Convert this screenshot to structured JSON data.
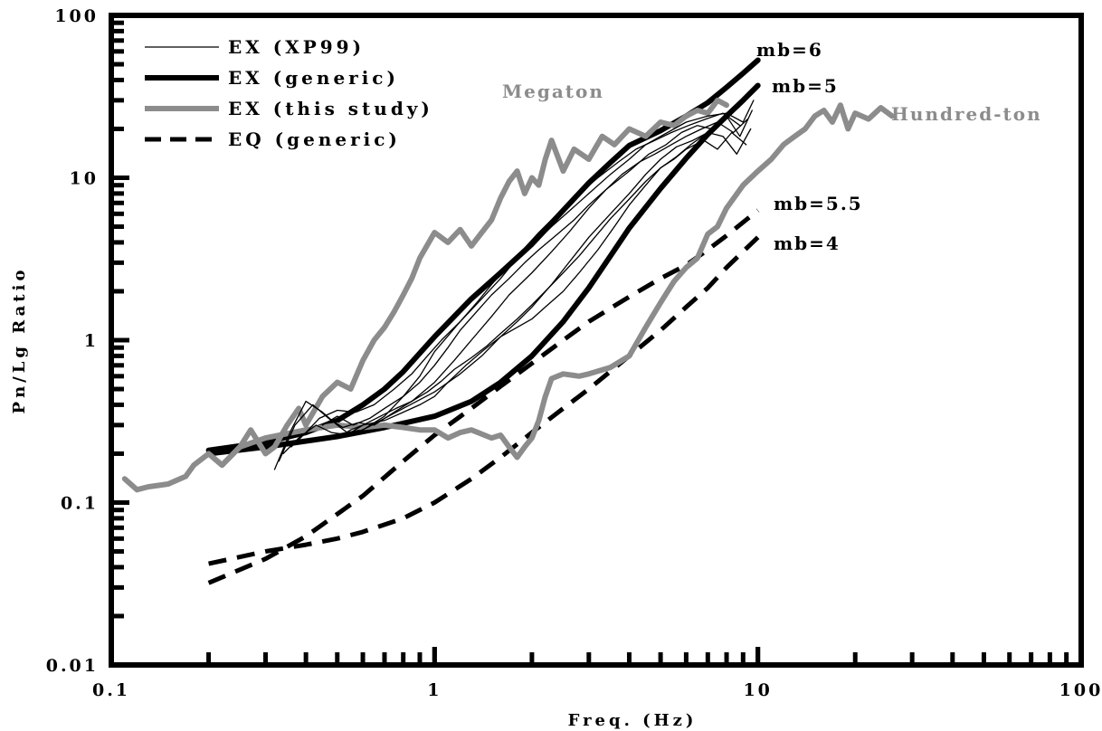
{
  "chart_data": {
    "type": "line",
    "title": "",
    "xlabel": "Freq. (Hz)",
    "ylabel": "Pn/Lg Ratio",
    "xscale": "log",
    "yscale": "log",
    "xlim": [
      0.1,
      100
    ],
    "ylim": [
      0.01,
      100
    ],
    "x_tick_labels": [
      "0.1",
      "1",
      "10",
      "100"
    ],
    "y_tick_labels": [
      "0.01",
      "0.1",
      "1",
      "10",
      "100"
    ],
    "grid": false,
    "legend_position": "top-left",
    "legend": [
      {
        "label": "EX (XP99)",
        "style": "thin",
        "color": "#000000"
      },
      {
        "label": "EX (generic)",
        "style": "thick",
        "color": "#000000"
      },
      {
        "label": "EX (this study)",
        "style": "thick",
        "color": "#8c8c8c"
      },
      {
        "label": "EQ (generic)",
        "style": "dashed",
        "color": "#000000"
      }
    ],
    "annotations": [
      {
        "text": "mb=6",
        "color": "#000000"
      },
      {
        "text": "mb=5",
        "color": "#000000"
      },
      {
        "text": "mb=5.5",
        "color": "#000000"
      },
      {
        "text": "mb=4",
        "color": "#000000"
      },
      {
        "text": "Megaton",
        "color": "#8c8c8c"
      },
      {
        "text": "Hundred-ton",
        "color": "#8c8c8c"
      }
    ],
    "series": [
      {
        "name": "EX (generic)",
        "label": "mb=6",
        "style": "thick",
        "color": "#000000",
        "x": [
          0.2,
          0.3,
          0.4,
          0.5,
          0.6,
          0.7,
          0.8,
          1.0,
          1.3,
          1.6,
          2.0,
          2.5,
          3.0,
          3.5,
          4.0,
          5.0,
          6.0,
          7.0,
          8.0,
          9.0,
          10.0
        ],
        "y": [
          0.21,
          0.235,
          0.27,
          0.32,
          0.4,
          0.5,
          0.64,
          1.05,
          1.8,
          2.6,
          3.9,
          6.3,
          9.3,
          12.4,
          15.8,
          19.5,
          24.0,
          29.0,
          36.0,
          44.0,
          53.0
        ]
      },
      {
        "name": "EX (generic)",
        "label": "mb=5",
        "style": "thick",
        "color": "#000000",
        "x": [
          0.2,
          0.3,
          0.5,
          0.7,
          1.0,
          1.3,
          1.6,
          2.0,
          2.5,
          3.0,
          3.5,
          4.0,
          5.0,
          6.0,
          7.0,
          8.0,
          9.0,
          10.0
        ],
        "y": [
          0.2,
          0.22,
          0.255,
          0.29,
          0.34,
          0.42,
          0.55,
          0.8,
          1.3,
          2.1,
          3.3,
          4.9,
          8.6,
          13.2,
          18.5,
          24.0,
          30.0,
          37.0
        ]
      },
      {
        "name": "EQ (generic)",
        "label": "mb=5.5",
        "style": "dashed",
        "color": "#000000",
        "x": [
          0.2,
          0.3,
          0.4,
          0.6,
          0.8,
          1.0,
          1.3,
          1.6,
          2.0,
          2.5,
          3.0,
          4.0,
          5.0,
          6.0,
          7.0,
          8.0,
          10.0
        ],
        "y": [
          0.032,
          0.045,
          0.062,
          0.11,
          0.18,
          0.26,
          0.38,
          0.52,
          0.72,
          1.0,
          1.3,
          1.85,
          2.4,
          2.9,
          3.6,
          4.4,
          6.3
        ]
      },
      {
        "name": "EQ (generic)",
        "label": "mb=4",
        "style": "dashed",
        "color": "#000000",
        "x": [
          0.2,
          0.3,
          0.4,
          0.5,
          0.6,
          0.8,
          1.0,
          1.3,
          1.6,
          2.0,
          2.5,
          3.0,
          4.0,
          5.0,
          6.0,
          7.0,
          8.0,
          10.0
        ],
        "y": [
          0.042,
          0.05,
          0.055,
          0.06,
          0.066,
          0.08,
          0.1,
          0.14,
          0.19,
          0.27,
          0.38,
          0.5,
          0.8,
          1.15,
          1.6,
          2.1,
          2.8,
          4.3
        ]
      },
      {
        "name": "EX (this study)",
        "label": "Megaton",
        "style": "thick",
        "color": "#8c8c8c",
        "x": [
          0.2,
          0.22,
          0.25,
          0.27,
          0.3,
          0.32,
          0.35,
          0.38,
          0.4,
          0.45,
          0.5,
          0.55,
          0.6,
          0.65,
          0.7,
          0.75,
          0.8,
          0.85,
          0.9,
          1.0,
          1.1,
          1.2,
          1.3,
          1.4,
          1.5,
          1.6,
          1.7,
          1.8,
          1.9,
          2.0,
          2.1,
          2.2,
          2.3,
          2.5,
          2.7,
          3.0,
          3.3,
          3.6,
          4.0,
          4.5,
          5.0,
          5.5,
          6.0,
          6.5,
          7.0,
          7.5,
          8.0
        ],
        "y": [
          0.2,
          0.17,
          0.22,
          0.28,
          0.2,
          0.22,
          0.3,
          0.38,
          0.3,
          0.45,
          0.55,
          0.5,
          0.75,
          1.0,
          1.2,
          1.5,
          1.9,
          2.4,
          3.2,
          4.6,
          4.0,
          4.8,
          3.8,
          4.6,
          5.5,
          7.5,
          9.5,
          11.0,
          8.0,
          10.0,
          9.0,
          13.0,
          17.0,
          11.0,
          15.0,
          13.0,
          18.0,
          16.0,
          20.0,
          18.0,
          22.0,
          21.0,
          24.0,
          26.0,
          25.0,
          30.0,
          28.0
        ]
      },
      {
        "name": "EX (this study)",
        "label": "Hundred-ton",
        "style": "thick",
        "color": "#8c8c8c",
        "x": [
          0.11,
          0.12,
          0.13,
          0.15,
          0.17,
          0.18,
          0.2,
          0.22,
          0.25,
          0.3,
          0.4,
          0.5,
          0.6,
          0.7,
          0.8,
          0.9,
          1.0,
          1.1,
          1.2,
          1.3,
          1.5,
          1.6,
          1.7,
          1.8,
          1.9,
          2.0,
          2.1,
          2.2,
          2.3,
          2.5,
          2.8,
          3.0,
          3.5,
          4.0,
          4.5,
          5.0,
          5.5,
          6.0,
          6.5,
          7.0,
          7.5,
          8.0,
          9.0,
          10.0,
          11.0,
          12.0,
          13.0,
          14.0,
          15.0,
          16.0,
          17.0,
          18.0,
          19.0,
          20.0,
          22.0,
          24.0,
          26.0
        ],
        "y": [
          0.14,
          0.12,
          0.125,
          0.13,
          0.145,
          0.17,
          0.2,
          0.17,
          0.22,
          0.25,
          0.28,
          0.3,
          0.29,
          0.3,
          0.29,
          0.28,
          0.28,
          0.25,
          0.27,
          0.28,
          0.25,
          0.26,
          0.22,
          0.19,
          0.22,
          0.25,
          0.32,
          0.45,
          0.58,
          0.62,
          0.6,
          0.62,
          0.68,
          0.8,
          1.2,
          1.7,
          2.3,
          2.8,
          3.2,
          4.5,
          5.0,
          6.5,
          9.0,
          11.0,
          13.0,
          16.0,
          18.0,
          20.0,
          24.0,
          26.0,
          22.0,
          28.0,
          20.0,
          25.0,
          23.0,
          27.0,
          24.0
        ]
      },
      {
        "name": "EX (XP99)",
        "style": "thin",
        "color": "#000000",
        "x": [
          0.32,
          0.36,
          0.4,
          0.45,
          0.5,
          0.55,
          0.6,
          0.7,
          0.8,
          0.9,
          1.0,
          1.2,
          1.4,
          1.6,
          1.8,
          2.0,
          2.3,
          2.6,
          3.0,
          3.5,
          4.0,
          4.5,
          5.0,
          5.5,
          6.0,
          7.0,
          8.0,
          9.0,
          9.7
        ],
        "y": [
          0.16,
          0.28,
          0.42,
          0.36,
          0.3,
          0.26,
          0.28,
          0.34,
          0.45,
          0.6,
          0.85,
          1.3,
          1.8,
          2.4,
          3.2,
          3.8,
          5.0,
          6.2,
          8.0,
          10.5,
          13.0,
          16.0,
          18.0,
          20.0,
          22.0,
          24.0,
          25.0,
          22.0,
          30.0
        ]
      },
      {
        "name": "EX (XP99)",
        "style": "thin",
        "color": "#000000",
        "x": [
          0.33,
          0.37,
          0.42,
          0.47,
          0.52,
          0.58,
          0.65,
          0.75,
          0.85,
          1.0,
          1.15,
          1.3,
          1.5,
          1.7,
          2.0,
          2.3,
          2.6,
          3.0,
          3.4,
          4.0,
          4.6,
          5.2,
          5.8,
          6.5,
          7.2,
          8.0,
          8.8,
          9.6
        ],
        "y": [
          0.18,
          0.3,
          0.4,
          0.33,
          0.29,
          0.31,
          0.3,
          0.36,
          0.42,
          0.55,
          0.75,
          1.0,
          1.4,
          1.9,
          2.6,
          3.5,
          4.6,
          6.5,
          8.5,
          11.0,
          14.0,
          16.0,
          19.0,
          21.0,
          20.0,
          24.0,
          18.0,
          26.0
        ]
      },
      {
        "name": "EX (XP99)",
        "style": "thin",
        "color": "#000000",
        "x": [
          0.34,
          0.38,
          0.43,
          0.48,
          0.55,
          0.62,
          0.7,
          0.8,
          0.9,
          1.0,
          1.2,
          1.4,
          1.6,
          1.8,
          2.0,
          2.3,
          2.6,
          3.0,
          3.5,
          4.0,
          4.5,
          5.0,
          5.6,
          6.3,
          7.0,
          7.8,
          8.6,
          9.5
        ],
        "y": [
          0.2,
          0.25,
          0.3,
          0.27,
          0.26,
          0.29,
          0.33,
          0.38,
          0.43,
          0.48,
          0.62,
          0.8,
          1.05,
          1.3,
          1.6,
          2.2,
          3.0,
          4.3,
          6.0,
          8.0,
          10.5,
          13.0,
          15.5,
          17.0,
          19.0,
          18.0,
          14.0,
          20.0
        ]
      },
      {
        "name": "EX (XP99)",
        "style": "thin",
        "color": "#000000",
        "x": [
          0.5,
          0.55,
          0.6,
          0.7,
          0.8,
          0.9,
          1.0,
          1.1,
          1.25,
          1.4,
          1.6,
          1.8,
          2.0,
          2.2,
          2.5,
          2.8,
          3.2,
          3.6,
          4.0,
          4.5,
          5.0,
          5.5,
          6.0,
          6.8,
          7.5,
          8.3,
          9.2
        ],
        "y": [
          0.25,
          0.28,
          0.3,
          0.32,
          0.36,
          0.4,
          0.45,
          0.55,
          0.7,
          0.85,
          1.05,
          1.2,
          1.35,
          1.6,
          2.0,
          2.6,
          3.6,
          5.0,
          6.8,
          9.0,
          11.5,
          13.0,
          15.0,
          17.0,
          15.0,
          19.0,
          16.0
        ]
      },
      {
        "name": "EX (XP99)",
        "style": "thin",
        "color": "#000000",
        "x": [
          0.45,
          0.5,
          0.56,
          0.63,
          0.7,
          0.8,
          0.9,
          1.0,
          1.1,
          1.2,
          1.35,
          1.5,
          1.7,
          1.9,
          2.1,
          2.4,
          2.7,
          3.0,
          3.4,
          3.8,
          4.3,
          4.8,
          5.4,
          6.0,
          6.7,
          7.5,
          8.4,
          9.3
        ],
        "y": [
          0.3,
          0.34,
          0.3,
          0.33,
          0.38,
          0.45,
          0.55,
          0.7,
          0.9,
          1.15,
          1.5,
          1.9,
          2.4,
          3.0,
          3.6,
          4.5,
          5.5,
          6.8,
          8.5,
          10.5,
          12.5,
          14.0,
          16.0,
          18.0,
          20.0,
          22.0,
          19.0,
          23.0
        ]
      },
      {
        "name": "EX (XP99)",
        "style": "thin",
        "color": "#000000",
        "x": [
          0.36,
          0.4,
          0.44,
          0.5,
          0.57,
          0.65,
          0.75,
          0.85,
          0.95,
          1.05,
          1.2,
          1.35,
          1.5,
          1.7,
          1.9,
          2.1,
          2.4,
          2.8,
          3.2,
          3.7,
          4.2,
          4.8,
          5.4,
          6.1,
          6.9,
          7.8,
          8.8
        ],
        "y": [
          0.22,
          0.27,
          0.33,
          0.37,
          0.36,
          0.4,
          0.5,
          0.62,
          0.8,
          1.0,
          1.3,
          1.7,
          2.2,
          2.9,
          3.7,
          4.6,
          6.0,
          8.0,
          10.0,
          12.5,
          15.0,
          17.0,
          19.0,
          21.0,
          23.0,
          25.0,
          21.0
        ]
      },
      {
        "name": "EX (XP99)",
        "style": "thin",
        "color": "#000000",
        "x": [
          0.55,
          0.6,
          0.68,
          0.76,
          0.85,
          0.95,
          1.05,
          1.15,
          1.3,
          1.45,
          1.6,
          1.8,
          2.0,
          2.2,
          2.5,
          2.8,
          3.1,
          3.5,
          4.0,
          4.5,
          5.0,
          5.6,
          6.2,
          7.0,
          7.8,
          8.7,
          9.6
        ],
        "y": [
          0.27,
          0.3,
          0.34,
          0.38,
          0.42,
          0.48,
          0.56,
          0.66,
          0.78,
          0.92,
          1.1,
          1.35,
          1.65,
          2.0,
          2.6,
          3.3,
          4.2,
          5.6,
          7.4,
          9.5,
          11.5,
          13.5,
          16.0,
          19.0,
          23.0,
          27.0,
          33.0
        ]
      }
    ]
  }
}
